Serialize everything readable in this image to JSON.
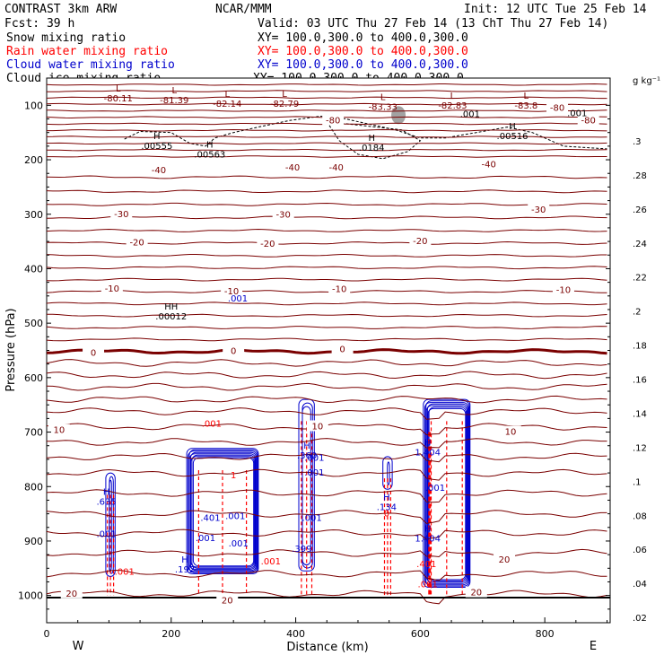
{
  "header": {
    "model": "CONTRAST  3km ARW",
    "center": "NCAR/MMM",
    "init": "Init: 12 UTC Tue 25 Feb 14",
    "fcst": "Fcst:   39 h",
    "valid": "Valid: 03 UTC Thu 27 Feb 14 (13 ChT Thu 27 Feb 14)",
    "fields": [
      {
        "name": "Snow mixing ratio",
        "xy": "XY= 100.0,300.0 to 400.0,300.0",
        "color": "#000000"
      },
      {
        "name": "Rain water mixing ratio",
        "xy": "XY= 100.0,300.0 to 400.0,300.0",
        "color": "#ff0000"
      },
      {
        "name": "Cloud water mixing ratio",
        "xy": "XY= 100.0,300.0 to 400.0,300.0",
        "color": "#0000cc"
      },
      {
        "name": "Cloud ice mixing ratio",
        "xy": "XY= 100.0,300.0 to 400.0,300.0",
        "color": "#000000"
      }
    ]
  },
  "colors": {
    "temperature": "#7a0000",
    "zero_isotherm": "#7a0000",
    "rain": "#ff0000",
    "cloud_water": "#0000cc",
    "snow": "#000000"
  },
  "chart_data": {
    "type": "contour",
    "xlabel": "Distance (km)",
    "ylabel": "Pressure (hPa)",
    "xlim": [
      0,
      905
    ],
    "ylim": [
      1050,
      50
    ],
    "xticks": [
      0,
      200,
      400,
      600,
      800
    ],
    "yticks": [
      100,
      200,
      300,
      400,
      500,
      600,
      700,
      800,
      900,
      1000
    ],
    "x_end_labels": {
      "left": "W",
      "right": "E"
    },
    "colorbar": {
      "unit": "g kg⁻¹",
      "labels": [
        ".3",
        ".28",
        ".26",
        ".24",
        ".22",
        ".2",
        ".18",
        ".16",
        ".14",
        ".12",
        ".1",
        ".08",
        ".06",
        ".04",
        ".02"
      ]
    },
    "isotherm_labels": [
      {
        "x": 75,
        "p": 555,
        "text": "0"
      },
      {
        "x": 300,
        "p": 552,
        "text": "0"
      },
      {
        "x": 475,
        "p": 548,
        "text": "0"
      },
      {
        "x": 20,
        "p": 697,
        "text": "10"
      },
      {
        "x": 435,
        "p": 690,
        "text": "10"
      },
      {
        "x": 745,
        "p": 700,
        "text": "10"
      },
      {
        "x": 105,
        "p": 437,
        "text": "-10"
      },
      {
        "x": 297,
        "p": 442,
        "text": "-10"
      },
      {
        "x": 470,
        "p": 438,
        "text": "-10"
      },
      {
        "x": 830,
        "p": 440,
        "text": "-10"
      },
      {
        "x": 145,
        "p": 352,
        "text": "-20"
      },
      {
        "x": 355,
        "p": 355,
        "text": "-20"
      },
      {
        "x": 600,
        "p": 350,
        "text": "-20"
      },
      {
        "x": 120,
        "p": 300,
        "text": "-30"
      },
      {
        "x": 380,
        "p": 301,
        "text": "-30"
      },
      {
        "x": 790,
        "p": 292,
        "text": "-30"
      },
      {
        "x": 180,
        "p": 220,
        "text": "-40"
      },
      {
        "x": 395,
        "p": 215,
        "text": "-40"
      },
      {
        "x": 465,
        "p": 215,
        "text": "-40"
      },
      {
        "x": 710,
        "p": 209,
        "text": "-40"
      },
      {
        "x": 460,
        "p": 128,
        "text": "-80"
      },
      {
        "x": 820,
        "p": 105,
        "text": "-80"
      },
      {
        "x": 870,
        "p": 128,
        "text": "-80"
      },
      {
        "x": 40,
        "p": 997,
        "text": "20"
      },
      {
        "x": 735,
        "p": 935,
        "text": "20"
      },
      {
        "x": 290,
        "p": 1010,
        "text": "20"
      },
      {
        "x": 690,
        "p": 995,
        "text": "20"
      }
    ],
    "extrema": [
      {
        "x": 115,
        "p": 75,
        "sym": "L",
        "value": "-80.11",
        "color": "#7a0000"
      },
      {
        "x": 205,
        "p": 78,
        "sym": "L",
        "value": "-81.39",
        "color": "#7a0000"
      },
      {
        "x": 290,
        "p": 85,
        "sym": "L",
        "value": "-82.14",
        "color": "#7a0000"
      },
      {
        "x": 382,
        "p": 85,
        "sym": "L",
        "value": "-82.79",
        "color": "#7a0000"
      },
      {
        "x": 540,
        "p": 90,
        "sym": "L",
        "value": "-83.33",
        "color": "#7a0000"
      },
      {
        "x": 652,
        "p": 88,
        "sym": "L",
        "value": "-82.83",
        "color": "#7a0000"
      },
      {
        "x": 770,
        "p": 88,
        "sym": "L",
        "value": "-83.8",
        "color": "#7a0000"
      },
      {
        "x": 177,
        "p": 162,
        "sym": "H",
        "value": ".00555",
        "color": "#000000"
      },
      {
        "x": 262,
        "p": 178,
        "sym": "H",
        "value": ".00563",
        "color": "#000000"
      },
      {
        "x": 522,
        "p": 165,
        "sym": "H",
        "value": ".0184",
        "color": "#000000"
      },
      {
        "x": 748,
        "p": 144,
        "sym": "H",
        "value": ".00516",
        "color": "#000000"
      },
      {
        "x": 200,
        "p": 475,
        "sym": "HH",
        "value": ".00012",
        "color": "#000000"
      },
      {
        "x": 96,
        "p": 815,
        "sym": "H",
        "value": ".635",
        "color": "#0000cc"
      },
      {
        "x": 222,
        "p": 940,
        "sym": "H",
        "value": ".192",
        "color": "#0000cc"
      },
      {
        "x": 418,
        "p": 730,
        "sym": "H",
        "value": ".360",
        "color": "#0000cc"
      },
      {
        "x": 546,
        "p": 825,
        "sym": "H",
        "value": ".134",
        "color": "#0000cc"
      },
      {
        "x": 612,
        "p": 725,
        "sym": "H",
        "value": "1.404",
        "color": "#0000cc"
      },
      {
        "x": 612,
        "p": 883,
        "sym": "H",
        "value": "1.404",
        "color": "#0000cc"
      }
    ],
    "minor_labels": [
      {
        "x": 852,
        "p": 120,
        "text": ".001",
        "color": "#000000"
      },
      {
        "x": 680,
        "p": 122,
        "text": ".001",
        "color": "#000000"
      },
      {
        "x": 307,
        "p": 460,
        "text": ".001",
        "color": "#0000cc"
      },
      {
        "x": 265,
        "p": 690,
        "text": ".001",
        "color": "#ff0000"
      },
      {
        "x": 430,
        "p": 753,
        "text": ".001",
        "color": "#0000cc"
      },
      {
        "x": 430,
        "p": 780,
        "text": ".001",
        "color": "#0000cc"
      },
      {
        "x": 263,
        "p": 863,
        "text": ".401",
        "color": "#0000cc"
      },
      {
        "x": 303,
        "p": 860,
        "text": ".001",
        "color": "#0000cc"
      },
      {
        "x": 255,
        "p": 900,
        "text": ".001",
        "color": "#0000cc"
      },
      {
        "x": 308,
        "p": 910,
        "text": ".001",
        "color": "#0000cc"
      },
      {
        "x": 360,
        "p": 943,
        "text": ".001",
        "color": "#ff0000"
      },
      {
        "x": 410,
        "p": 920,
        "text": ".399",
        "color": "#0000cc"
      },
      {
        "x": 426,
        "p": 863,
        "text": ".001",
        "color": "#0000cc"
      },
      {
        "x": 96,
        "p": 893,
        "text": ".001",
        "color": "#0000cc"
      },
      {
        "x": 125,
        "p": 962,
        "text": ".001",
        "color": "#ff0000"
      },
      {
        "x": 624,
        "p": 808,
        "text": ".001",
        "color": "#0000cc"
      },
      {
        "x": 610,
        "p": 948,
        "text": ".401",
        "color": "#ff0000"
      },
      {
        "x": 612,
        "p": 985,
        "text": ".001",
        "color": "#ff0000"
      },
      {
        "x": 546,
        "p": 855,
        "text": "0",
        "color": "#ff0000"
      },
      {
        "x": 300,
        "p": 785,
        "text": "1",
        "color": "#ff0000"
      }
    ]
  }
}
